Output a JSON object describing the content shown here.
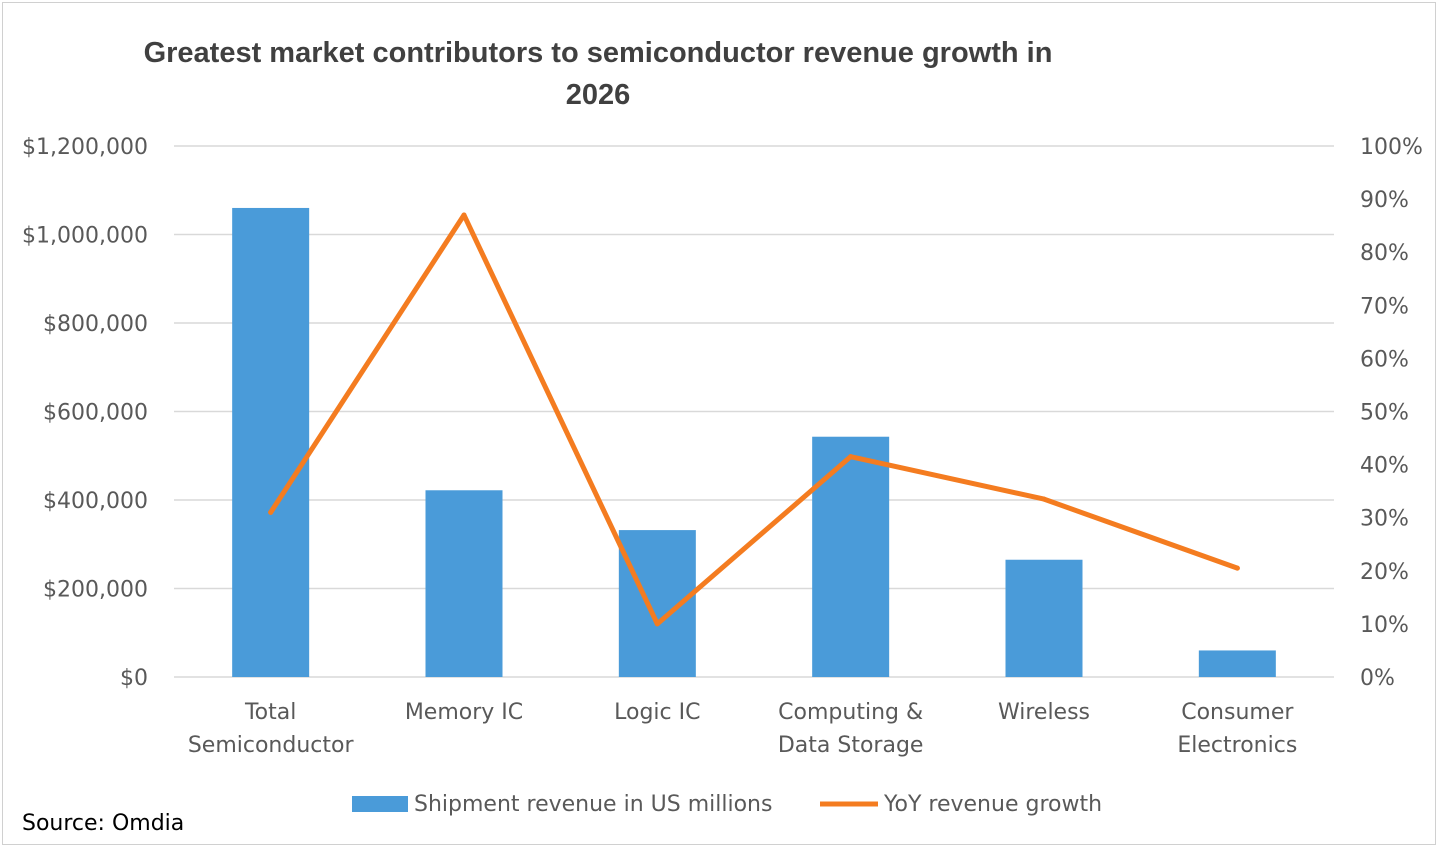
{
  "chart_data": {
    "type": "bar",
    "title_lines": [
      "Greatest market contributors to semiconductor revenue growth in",
      "2026"
    ],
    "categories": [
      [
        "Total",
        "Semiconductor"
      ],
      [
        "Memory IC"
      ],
      [
        "Logic IC"
      ],
      [
        "Computing &",
        "Data Storage"
      ],
      [
        "Wireless"
      ],
      [
        "Consumer",
        "Electronics"
      ]
    ],
    "series": [
      {
        "name": "Shipment revenue in US millions",
        "type": "bar",
        "axis": "left",
        "color": "#4a9bd9",
        "values": [
          1060000,
          422000,
          332000,
          543000,
          265000,
          60000
        ]
      },
      {
        "name": "YoY revenue growth",
        "type": "line",
        "axis": "right",
        "color": "#f47c20",
        "values": [
          31,
          87,
          10,
          41.5,
          33.5,
          20.5
        ]
      }
    ],
    "y_left": {
      "min": 0,
      "max": 1200000,
      "ticks": [
        0,
        200000,
        400000,
        600000,
        800000,
        1000000,
        1200000
      ],
      "tick_labels": [
        "$0",
        "$200,000",
        "$400,000",
        "$600,000",
        "$800,000",
        "$1,000,000",
        "$1,200,000"
      ]
    },
    "y_right": {
      "min": 0,
      "max": 100,
      "ticks": [
        0,
        10,
        20,
        30,
        40,
        50,
        60,
        70,
        80,
        90,
        100
      ],
      "tick_labels": [
        "0%",
        "10%",
        "20%",
        "30%",
        "40%",
        "50%",
        "60%",
        "70%",
        "80%",
        "90%",
        "100%"
      ]
    },
    "grid": true,
    "legend_position": "bottom",
    "gridline_color": "#d9d9d9"
  },
  "source": "Source: Omdia"
}
